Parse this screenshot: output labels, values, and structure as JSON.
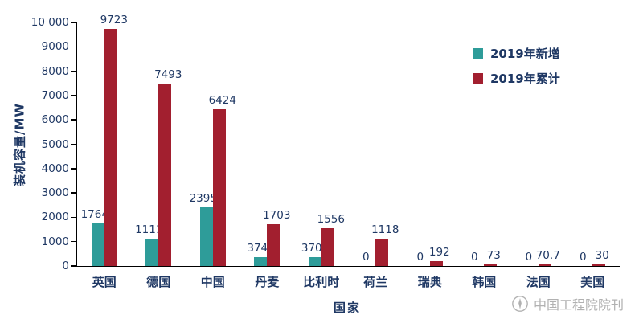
{
  "chart_data": {
    "type": "bar",
    "title": "",
    "xlabel": "国家",
    "ylabel": "装机容量/MW",
    "ylim": [
      0,
      10000
    ],
    "grid": false,
    "legend_position": "top-right",
    "yticks": [
      0,
      1000,
      2000,
      3000,
      4000,
      5000,
      6000,
      7000,
      8000,
      9000,
      10000
    ],
    "ytick_labels": [
      "0",
      "1000",
      "2000",
      "3000",
      "4000",
      "5000",
      "6000",
      "7000",
      "8000",
      "9000",
      "10 000"
    ],
    "categories": [
      "英国",
      "德国",
      "中国",
      "丹麦",
      "比利时",
      "荷兰",
      "瑞典",
      "韩国",
      "法国",
      "美国"
    ],
    "series": [
      {
        "name": "2019年新增",
        "color": "#2E9C99",
        "values": [
          1764,
          1111,
          2395,
          374,
          370,
          0,
          0,
          0,
          0,
          0
        ]
      },
      {
        "name": "2019年累计",
        "color": "#A21F2F",
        "values": [
          9723,
          7493,
          6424,
          1703,
          1556,
          1118,
          192,
          73,
          70.7,
          30
        ]
      }
    ]
  },
  "watermark": {
    "text": "中国工程院院刊"
  },
  "colors": {
    "text": "#1F3864",
    "axis": "#000000",
    "watermark": "#A9A9A9"
  }
}
